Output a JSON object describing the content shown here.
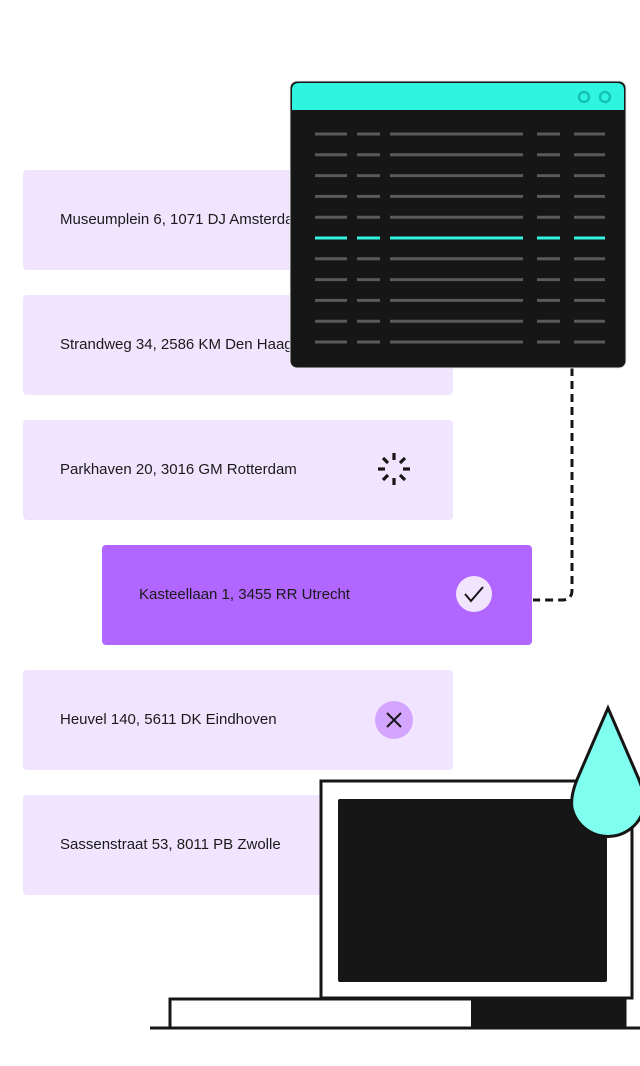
{
  "addresses": [
    {
      "label": "Museumplein 6, 1071 DJ Amsterdam",
      "status": "none"
    },
    {
      "label": "Strandweg 34, 2586 KM Den Haag",
      "status": "none"
    },
    {
      "label": "Parkhaven 20, 3016 GM Rotterdam",
      "status": "loading"
    },
    {
      "label": "Kasteellaan 1, 3455 RR Utrecht",
      "status": "success"
    },
    {
      "label": "Heuvel 140, 5611 DK Eindhoven",
      "status": "error"
    },
    {
      "label": "Sassenstraat 53, 8011 PB Zwolle",
      "status": "none"
    }
  ],
  "icons": {
    "loading": "spinner-icon",
    "success": "check-icon",
    "error": "close-icon"
  },
  "colors": {
    "card": "#f1e4ff",
    "card_active": "#b066ff",
    "accent_teal": "#2ff5e0",
    "error_badge": "#d4a5ff",
    "drop": "#80fff0",
    "dark": "#161616"
  }
}
